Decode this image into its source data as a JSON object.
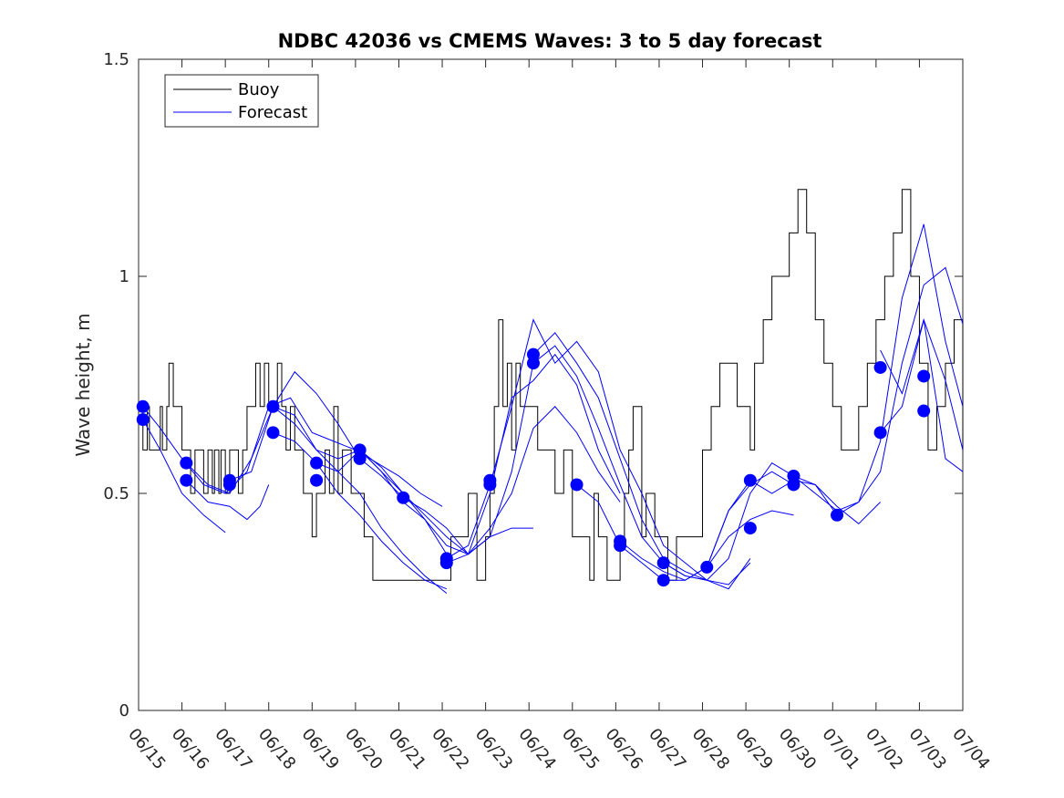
{
  "chart_data": {
    "type": "line",
    "title": "NDBC 42036 vs CMEMS Waves: 3 to 5 day forecast",
    "xlabel": "",
    "ylabel": "Wave height, m",
    "x_tick_labels": [
      "06/15",
      "06/16",
      "06/17",
      "06/18",
      "06/19",
      "06/20",
      "06/21",
      "06/22",
      "06/23",
      "06/24",
      "06/25",
      "06/26",
      "06/27",
      "06/28",
      "06/29",
      "06/30",
      "07/01",
      "07/02",
      "07/03",
      "07/04"
    ],
    "y_tick_labels": [
      "0",
      "0.5",
      "1",
      "1.5"
    ],
    "xlim": [
      0,
      19
    ],
    "ylim": [
      0,
      1.5
    ],
    "grid": false,
    "legend_position": "top-left",
    "colors": {
      "buoy": "#000000",
      "forecast": "#0000ff",
      "markers": "#0000ff"
    },
    "series": [
      {
        "name": "Buoy",
        "style": "step",
        "x": [
          0.0,
          0.1,
          0.2,
          0.25,
          0.35,
          0.5,
          0.55,
          0.65,
          0.7,
          0.8,
          0.9,
          1.0,
          1.2,
          1.3,
          1.5,
          1.6,
          1.7,
          1.75,
          1.85,
          1.9,
          2.0,
          2.1,
          2.2,
          2.3,
          2.4,
          2.5,
          2.6,
          2.7,
          2.8,
          2.9,
          3.0,
          3.1,
          3.2,
          3.3,
          3.4,
          3.5,
          3.6,
          3.7,
          3.8,
          3.9,
          4.0,
          4.1,
          4.2,
          4.3,
          4.4,
          4.5,
          4.6,
          4.7,
          4.8,
          4.9,
          5.0,
          5.1,
          5.2,
          5.3,
          5.4,
          5.5,
          5.6,
          5.7,
          5.8,
          5.9,
          6.0,
          6.2,
          6.4,
          6.6,
          6.8,
          7.0,
          7.2,
          7.4,
          7.6,
          7.8,
          8.0,
          8.1,
          8.2,
          8.3,
          8.4,
          8.5,
          8.6,
          8.7,
          8.8,
          8.9,
          9.0,
          9.2,
          9.4,
          9.6,
          9.8,
          10.0,
          10.2,
          10.4,
          10.5,
          10.6,
          10.8,
          11.0,
          11.1,
          11.2,
          11.3,
          11.4,
          11.6,
          11.7,
          11.8,
          11.9,
          12.0,
          12.2,
          12.4,
          12.5,
          12.6,
          12.8,
          13.0,
          13.2,
          13.4,
          13.6,
          13.8,
          14.0,
          14.1,
          14.2,
          14.4,
          14.6,
          14.8,
          15.0,
          15.2,
          15.4,
          15.6,
          15.8,
          16.0,
          16.2,
          16.4,
          16.6,
          16.8,
          17.0,
          17.2,
          17.4,
          17.6,
          17.8,
          18.0,
          18.2,
          18.4,
          18.6,
          18.8,
          19.0
        ],
        "y": [
          0.7,
          0.6,
          0.7,
          0.6,
          0.6,
          0.7,
          0.6,
          0.7,
          0.8,
          0.7,
          0.7,
          0.6,
          0.5,
          0.6,
          0.5,
          0.6,
          0.5,
          0.6,
          0.5,
          0.6,
          0.5,
          0.6,
          0.6,
          0.5,
          0.6,
          0.7,
          0.7,
          0.8,
          0.7,
          0.8,
          0.7,
          0.7,
          0.8,
          0.7,
          0.6,
          0.7,
          0.6,
          0.6,
          0.5,
          0.5,
          0.4,
          0.5,
          0.5,
          0.6,
          0.5,
          0.7,
          0.5,
          0.6,
          0.6,
          0.5,
          0.5,
          0.5,
          0.4,
          0.4,
          0.3,
          0.3,
          0.3,
          0.3,
          0.3,
          0.3,
          0.3,
          0.3,
          0.3,
          0.3,
          0.3,
          0.3,
          0.4,
          0.4,
          0.5,
          0.3,
          0.4,
          0.5,
          0.7,
          0.9,
          0.7,
          0.8,
          0.6,
          0.8,
          0.7,
          0.7,
          0.7,
          0.6,
          0.6,
          0.5,
          0.6,
          0.4,
          0.4,
          0.3,
          0.5,
          0.4,
          0.3,
          0.3,
          0.4,
          0.5,
          0.6,
          0.7,
          0.4,
          0.5,
          0.5,
          0.4,
          0.4,
          0.3,
          0.4,
          0.4,
          0.4,
          0.4,
          0.6,
          0.7,
          0.8,
          0.8,
          0.7,
          0.7,
          0.6,
          0.8,
          0.9,
          1.0,
          1.0,
          1.1,
          1.2,
          1.1,
          0.9,
          0.8,
          0.7,
          0.6,
          0.6,
          0.7,
          0.8,
          0.9,
          1.0,
          1.1,
          1.2,
          1.0,
          0.8,
          0.6,
          0.7,
          0.8,
          0.9,
          0.6
        ]
      },
      {
        "name": "Forecast",
        "x": [
          0.1,
          0.5,
          1.0,
          1.5,
          2.0,
          2.5,
          3.0,
          3.5,
          4.0,
          4.5,
          5.0,
          5.5,
          6.0,
          6.5,
          7.0
        ],
        "y": [
          0.7,
          0.65,
          0.58,
          0.52,
          0.5,
          0.55,
          0.7,
          0.72,
          0.64,
          0.62,
          0.6,
          0.57,
          0.54,
          0.5,
          0.47
        ]
      },
      {
        "name": "Forecast",
        "x": [
          0.1,
          0.5,
          1.0,
          1.5,
          2.0
        ],
        "y": [
          0.67,
          0.6,
          0.5,
          0.45,
          0.41
        ]
      },
      {
        "name": "Forecast",
        "x": [
          1.1,
          1.6,
          2.1,
          2.6,
          3.1,
          3.6,
          4.1,
          4.6,
          5.1,
          5.6,
          6.1
        ],
        "y": [
          0.57,
          0.52,
          0.5,
          0.58,
          0.7,
          0.78,
          0.73,
          0.66,
          0.58,
          0.54,
          0.49
        ]
      },
      {
        "name": "Forecast",
        "x": [
          1.1,
          1.6,
          2.1,
          2.5,
          2.8,
          3.0
        ],
        "y": [
          0.53,
          0.48,
          0.47,
          0.44,
          0.47,
          0.52
        ]
      },
      {
        "name": "Forecast",
        "x": [
          2.1,
          2.6,
          3.1,
          3.6,
          4.1,
          4.6,
          5.1,
          5.6,
          6.1,
          6.6,
          7.1
        ],
        "y": [
          0.53,
          0.55,
          0.7,
          0.68,
          0.6,
          0.58,
          0.6,
          0.55,
          0.5,
          0.44,
          0.36
        ]
      },
      {
        "name": "Forecast",
        "x": [
          3.1,
          3.6,
          4.1,
          4.6,
          5.1,
          5.6,
          6.1,
          6.6,
          7.1
        ],
        "y": [
          0.7,
          0.66,
          0.6,
          0.55,
          0.5,
          0.42,
          0.36,
          0.31,
          0.27
        ]
      },
      {
        "name": "Forecast",
        "x": [
          3.1,
          3.6,
          4.1,
          4.6,
          5.1,
          5.6,
          6.1,
          6.6,
          7.1
        ],
        "y": [
          0.64,
          0.62,
          0.57,
          0.5,
          0.45,
          0.39,
          0.34,
          0.3,
          0.28
        ]
      },
      {
        "name": "Forecast",
        "x": [
          4.1,
          4.6,
          5.1,
          5.6,
          6.1,
          6.6,
          7.1,
          7.6,
          8.1,
          8.6,
          9.1
        ],
        "y": [
          0.57,
          0.55,
          0.6,
          0.56,
          0.5,
          0.45,
          0.4,
          0.36,
          0.4,
          0.55,
          0.8
        ]
      },
      {
        "name": "Forecast",
        "x": [
          5.1,
          5.6,
          6.1,
          6.6,
          7.1,
          7.6,
          8.1,
          8.6,
          9.1
        ],
        "y": [
          0.6,
          0.55,
          0.48,
          0.44,
          0.38,
          0.36,
          0.4,
          0.42,
          0.42
        ]
      },
      {
        "name": "Forecast",
        "x": [
          6.1,
          6.6,
          7.1,
          7.6,
          8.1,
          8.6,
          9.1,
          9.6,
          10.1,
          10.6,
          11.1
        ],
        "y": [
          0.49,
          0.46,
          0.42,
          0.36,
          0.42,
          0.5,
          0.65,
          0.7,
          0.64,
          0.55,
          0.48
        ]
      },
      {
        "name": "Forecast",
        "x": [
          7.1,
          7.6,
          8.1,
          8.6,
          9.1,
          9.6,
          10.1,
          10.6,
          11.1,
          11.6,
          12.1,
          12.6,
          13.1
        ],
        "y": [
          0.35,
          0.38,
          0.52,
          0.7,
          0.9,
          0.8,
          0.85,
          0.78,
          0.6,
          0.5,
          0.38,
          0.34,
          0.3
        ]
      },
      {
        "name": "Forecast",
        "x": [
          7.1,
          7.6,
          8.1,
          8.6,
          9.1,
          9.6,
          10.1,
          10.6,
          11.1
        ],
        "y": [
          0.34,
          0.36,
          0.5,
          0.72,
          0.76,
          0.82,
          0.75,
          0.6,
          0.5
        ]
      },
      {
        "name": "Forecast",
        "x": [
          9.1,
          9.6,
          10.1,
          10.6,
          11.1,
          11.6,
          12.1,
          12.6,
          13.1,
          13.6,
          14.1
        ],
        "y": [
          0.82,
          0.87,
          0.8,
          0.72,
          0.58,
          0.44,
          0.35,
          0.32,
          0.3,
          0.29,
          0.34
        ]
      },
      {
        "name": "Forecast",
        "x": [
          9.1,
          9.6,
          10.1,
          10.6,
          11.1,
          11.6,
          12.1,
          12.6,
          13.1,
          13.6,
          14.1
        ],
        "y": [
          0.8,
          0.84,
          0.77,
          0.65,
          0.52,
          0.4,
          0.34,
          0.31,
          0.3,
          0.28,
          0.35
        ]
      },
      {
        "name": "Forecast",
        "x": [
          10.1,
          10.6,
          11.1,
          11.6,
          12.1,
          12.6,
          13.1,
          13.6,
          14.1,
          14.6,
          15.1
        ],
        "y": [
          0.52,
          0.48,
          0.38,
          0.34,
          0.3,
          0.3,
          0.33,
          0.46,
          0.52,
          0.55,
          0.52
        ]
      },
      {
        "name": "Forecast",
        "x": [
          11.1,
          11.6,
          12.1,
          12.6,
          13.1,
          13.6,
          14.1,
          14.6,
          15.1,
          15.6,
          16.1
        ],
        "y": [
          0.39,
          0.35,
          0.32,
          0.3,
          0.33,
          0.46,
          0.53,
          0.5,
          0.53,
          0.52,
          0.45
        ]
      },
      {
        "name": "Forecast",
        "x": [
          12.1,
          12.6,
          13.1,
          13.6,
          14.1,
          14.6,
          15.1,
          15.6,
          16.1,
          16.6,
          17.1
        ],
        "y": [
          0.34,
          0.31,
          0.3,
          0.35,
          0.5,
          0.57,
          0.54,
          0.52,
          0.47,
          0.43,
          0.48
        ]
      },
      {
        "name": "Forecast",
        "x": [
          13.1,
          13.6,
          14.1,
          14.6,
          15.1
        ],
        "y": [
          0.33,
          0.4,
          0.44,
          0.46,
          0.45
        ]
      },
      {
        "name": "Forecast",
        "x": [
          15.1,
          15.6,
          16.1,
          16.6,
          17.1,
          17.6,
          18.1,
          18.6,
          19.0
        ],
        "y": [
          0.54,
          0.5,
          0.46,
          0.48,
          0.55,
          0.8,
          0.98,
          1.02,
          0.89
        ]
      },
      {
        "name": "Forecast",
        "x": [
          16.1,
          16.6,
          17.1,
          17.6,
          18.1,
          18.6,
          19.0
        ],
        "y": [
          0.45,
          0.48,
          0.62,
          0.95,
          1.12,
          0.85,
          0.7
        ]
      },
      {
        "name": "Forecast",
        "x": [
          17.1,
          17.6,
          18.1,
          18.6,
          19.0
        ],
        "y": [
          0.83,
          0.73,
          0.9,
          0.76,
          0.6
        ]
      },
      {
        "name": "Forecast",
        "x": [
          17.1,
          17.6,
          18.1,
          18.6,
          19.0
        ],
        "y": [
          0.64,
          0.7,
          0.9,
          0.58,
          0.55
        ]
      }
    ],
    "markers": {
      "x": [
        0.1,
        0.1,
        1.1,
        1.1,
        2.1,
        2.1,
        3.1,
        3.1,
        4.1,
        4.1,
        5.1,
        5.1,
        6.1,
        7.1,
        7.1,
        8.1,
        8.1,
        9.1,
        9.1,
        10.1,
        11.1,
        11.1,
        12.1,
        12.1,
        13.1,
        14.1,
        14.1,
        15.1,
        15.1,
        16.1,
        17.1,
        17.1,
        18.1,
        18.1
      ],
      "y": [
        0.7,
        0.67,
        0.57,
        0.53,
        0.53,
        0.52,
        0.7,
        0.64,
        0.57,
        0.53,
        0.6,
        0.58,
        0.49,
        0.35,
        0.34,
        0.53,
        0.52,
        0.82,
        0.8,
        0.52,
        0.39,
        0.38,
        0.34,
        0.3,
        0.33,
        0.53,
        0.42,
        0.54,
        0.52,
        0.45,
        0.79,
        0.64,
        0.77,
        0.69
      ]
    }
  },
  "legend": {
    "items": [
      {
        "label": "Buoy",
        "color": "#000000"
      },
      {
        "label": "Forecast",
        "color": "#0000ff"
      }
    ]
  }
}
